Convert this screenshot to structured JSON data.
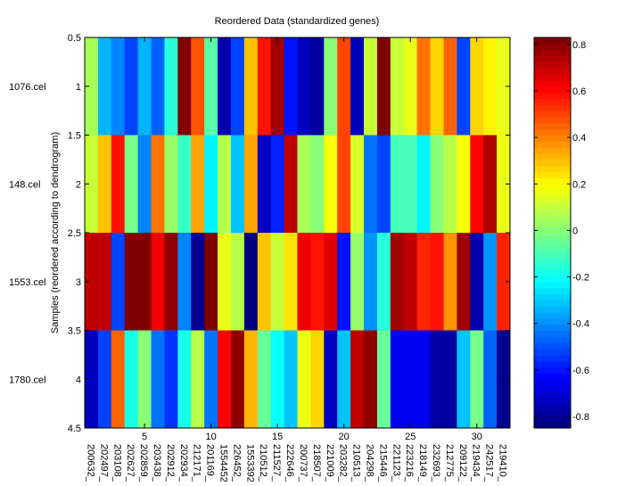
{
  "chart_data": {
    "type": "heatmap",
    "title": "Reordered Data (standardized genes)",
    "xlabel": "",
    "ylabel": "Samples (reordered according to dendrogram)",
    "x_ticks": [
      5,
      10,
      15,
      20,
      25,
      30
    ],
    "y_ticks": [
      "0.5",
      "1",
      "1.5",
      "2",
      "2.5",
      "3",
      "3.5",
      "4",
      "4.5"
    ],
    "ylim": [
      0.5,
      4.5
    ],
    "rows": [
      "1076.cel",
      "148.cel",
      "1553.cel",
      "1780.cel"
    ],
    "columns": [
      "200632_",
      "202497_",
      "203108_",
      "202627_",
      "202859_",
      "203438_",
      "202912_",
      "202934_",
      "212171_",
      "201169_",
      "1554452_",
      "226452_",
      "1553392_",
      "210512_",
      "211527_",
      "222646_",
      "200737_",
      "218507_",
      "221009_",
      "203282_",
      "210513_",
      "204298_",
      "215446_",
      "221123_",
      "223216_",
      "218149_",
      "232693_",
      "212775_",
      "209122_",
      "219434_",
      "242517_",
      "219410_"
    ],
    "values": [
      [
        0.05,
        -0.34,
        -0.41,
        -0.51,
        -0.34,
        -0.47,
        -0.15,
        0.83,
        0.47,
        -0.08,
        -0.77,
        -0.51,
        0.3,
        0.58,
        0.76,
        -0.6,
        -0.74,
        -0.79,
        0.0,
        0.51,
        -0.72,
        0.1,
        0.83,
        0.1,
        0.16,
        0.43,
        0.27,
        0.46,
        -0.53,
        0.27,
        0.21,
        0.16
      ],
      [
        0.1,
        0.3,
        0.58,
        -0.02,
        -0.41,
        0.41,
        0.03,
        -0.13,
        0.34,
        -0.23,
        0.08,
        -0.3,
        0.34,
        -0.74,
        -0.58,
        0.72,
        0.06,
        0.0,
        0.19,
        0.51,
        0.13,
        -0.45,
        -0.51,
        -0.09,
        -0.11,
        -0.23,
        0.0,
        0.08,
        0.19,
        0.6,
        0.75,
        0.16
      ],
      [
        0.7,
        0.72,
        -0.53,
        0.81,
        0.83,
        0.63,
        0.79,
        -0.43,
        -0.81,
        0.83,
        0.17,
        0.08,
        -0.85,
        0.3,
        0.1,
        0.25,
        0.63,
        0.59,
        0.67,
        -0.6,
        0.04,
        -0.39,
        -0.15,
        0.76,
        0.72,
        0.55,
        0.59,
        0.38,
        0.76,
        -0.77,
        -0.39,
        0.55
      ],
      [
        -0.72,
        -0.53,
        0.46,
        -0.19,
        0.0,
        -0.45,
        -0.55,
        -0.19,
        0.08,
        -0.45,
        0.61,
        0.79,
        0.32,
        -0.06,
        -0.21,
        -0.3,
        0.17,
        0.27,
        -0.72,
        -0.32,
        0.7,
        0.79,
        -0.06,
        -0.66,
        -0.66,
        -0.66,
        -0.79,
        -0.79,
        -0.32,
        -0.02,
        -0.47,
        -0.81
      ]
    ],
    "colorbar": {
      "colormap": "jet",
      "clim": [
        -0.85,
        0.83
      ],
      "ticks": [
        "-0.8",
        "-0.6",
        "-0.4",
        "-0.2",
        "0",
        "0.2",
        "0.4",
        "0.6",
        "0.8"
      ]
    }
  }
}
